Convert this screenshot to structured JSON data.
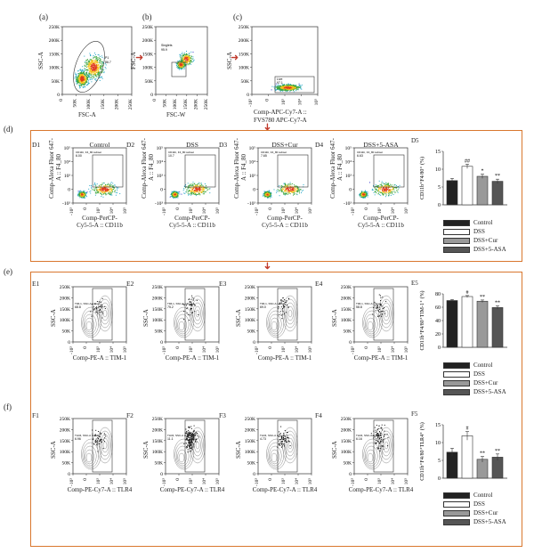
{
  "panels": {
    "a": "(a)",
    "b": "(b)",
    "c": "(c)",
    "d": "(d)",
    "e": "(e)",
    "f": "(f)"
  },
  "top": {
    "a": {
      "ylabel": "SSC-A",
      "xlabel": "FSC-A",
      "yticks": [
        "250K",
        "200K",
        "150K",
        "100K",
        "50K",
        "0"
      ],
      "xticks": [
        "0",
        "50K",
        "100K",
        "150K",
        "200K",
        "250K"
      ],
      "gate": "P1",
      "gate_val": "86.7"
    },
    "b": {
      "ylabel": "FSC-A",
      "xlabel": "FSC-W",
      "yticks": [
        "250K",
        "200K",
        "150K",
        "100K",
        "50K",
        "0"
      ],
      "xticks": [
        "0",
        "50K",
        "100K",
        "150K",
        "200K",
        "250K"
      ],
      "gate": "Singlets",
      "gate_val": "95.9"
    },
    "c": {
      "ylabel": "SSC-A",
      "xlabel": "Comp-APC-Cy7-A ::",
      "xlabel2": "FVS780 APC-Cy7-A",
      "yticks": [
        "250K",
        "200K",
        "150K",
        "100K",
        "50K",
        "0"
      ],
      "xticks": [
        "-10³",
        "0",
        "10³",
        "10⁴",
        "10⁵"
      ],
      "gate": "Live",
      "gate_val": "97.1"
    }
  },
  "row_d": {
    "ids": [
      "D1",
      "D2",
      "D3",
      "D4"
    ],
    "groups": [
      "Control",
      "DSS",
      "DSS+Cur",
      "DSS+5-ASA"
    ],
    "ylabel1": "Comp-Alexa Fluor 647-",
    "ylabel2": "A :: F4_80",
    "xlabel1": "Comp-PerCP-",
    "xlabel2": "Cy5-5-A :: CD11b",
    "gate_label": "CD11b, F4_80 subset",
    "gate_vals": [
      "6.00",
      "10.7",
      "7.65",
      "6.63"
    ],
    "yticks": [
      "10⁵",
      "10⁴",
      "10³",
      "0",
      "-10³"
    ],
    "xticks": [
      "-10³",
      "0",
      "10³",
      "10⁴",
      "10⁵"
    ]
  },
  "row_e": {
    "ids": [
      "E1",
      "E2",
      "E3",
      "E4"
    ],
    "ylabel": "SSC-A",
    "xlabel": "Comp-PE-A :: TIM-1",
    "gate_label": "TIM-1, SSC-A subset",
    "gate_vals": [
      "68.8",
      "75.2",
      "69.0",
      "58.8"
    ],
    "yticks": [
      "250K",
      "200K",
      "150K",
      "100K",
      "50K",
      "0"
    ],
    "xticks": [
      "-10³",
      "0",
      "10³",
      "10⁴",
      "10⁵"
    ]
  },
  "row_f": {
    "ids": [
      "F1",
      "F2",
      "F3",
      "F4"
    ],
    "ylabel": "SSC-A",
    "xlabel": "Comp-PE-Cy7-A :: TLR4",
    "gate_label": "TLR4, SSC-A subset",
    "gate_vals": [
      "6.96",
      "11.1",
      "4.73",
      "6.16"
    ],
    "yticks": [
      "250K",
      "200K",
      "150K",
      "100K",
      "50K",
      "0"
    ],
    "xticks": [
      "-10³",
      "0",
      "10³",
      "10⁴",
      "10⁵"
    ]
  },
  "legend": [
    "Control",
    "DSS",
    "DSS+Cur",
    "DSS+5-ASA"
  ],
  "colors": {
    "frame": "#d9772e",
    "arrow": "#c0392b",
    "control": "#222222",
    "dss": "#ffffff",
    "cur": "#999999",
    "asa": "#555555"
  },
  "chart_data": [
    {
      "id": "D5",
      "type": "bar",
      "categories": [
        "Control",
        "DSS",
        "DSS+Cur",
        "DSS+5-ASA"
      ],
      "values": [
        6.8,
        10.8,
        8.0,
        6.6
      ],
      "errors": [
        0.6,
        0.6,
        0.6,
        0.6
      ],
      "annotations": [
        "",
        "##",
        "*",
        "**"
      ],
      "ylabel": "CD11b⁺F4/80⁺ (%)",
      "ylim": [
        0,
        15
      ],
      "yticks": [
        "0",
        "5",
        "10",
        "15"
      ]
    },
    {
      "id": "E5",
      "type": "bar",
      "categories": [
        "Control",
        "DSS",
        "DSS+Cur",
        "DSS+5-ASA"
      ],
      "values": [
        70,
        76,
        69,
        59.5
      ],
      "errors": [
        1.5,
        1.5,
        1.8,
        2.5
      ],
      "annotations": [
        "",
        "#",
        "**",
        "**"
      ],
      "ylabel": "CD11b⁺F4/80⁺TIM-1⁺ (%)",
      "ylim": [
        0,
        80
      ],
      "yticks": [
        "0",
        "20",
        "40",
        "60",
        "80"
      ]
    },
    {
      "id": "F5",
      "type": "bar",
      "categories": [
        "Control",
        "DSS",
        "DSS+Cur",
        "DSS+5-ASA"
      ],
      "values": [
        7.3,
        11.9,
        5.3,
        5.9
      ],
      "errors": [
        1.1,
        1.2,
        0.8,
        0.9
      ],
      "annotations": [
        "",
        "#",
        "**",
        "**"
      ],
      "ylabel": "CD11b⁺F4/80⁺TLR4⁺ (%)",
      "ylim": [
        0,
        15
      ],
      "yticks": [
        "0",
        "5",
        "10",
        "15"
      ]
    }
  ]
}
